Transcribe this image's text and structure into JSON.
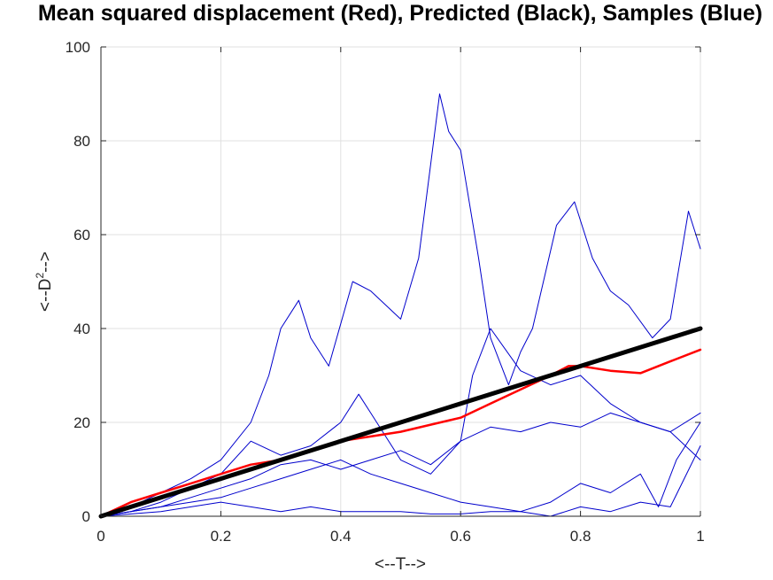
{
  "chart_data": {
    "type": "line",
    "title": "Mean squared displacement (Red), Predicted (Black), Samples (Blue)",
    "xlabel": "<--T-->",
    "ylabel_base": "<--D",
    "ylabel_sup": "2",
    "ylabel_tail": "-->",
    "xlim": [
      0,
      1
    ],
    "ylim": [
      0,
      100
    ],
    "xticks": [
      "0",
      "0.2",
      "0.4",
      "0.6",
      "0.8",
      "1"
    ],
    "yticks": [
      "0",
      "20",
      "40",
      "60",
      "80",
      "100"
    ],
    "grid": true,
    "colors": {
      "samples": "#0000cc",
      "mean": "#ff0000",
      "predicted": "#000000",
      "grid": "#e0e0e0",
      "axis": "#262626"
    },
    "series": [
      {
        "name": "Samples",
        "role": "samples",
        "width": 1,
        "x": [
          0,
          0.05,
          0.1,
          0.15,
          0.2,
          0.25,
          0.28,
          0.3,
          0.33,
          0.35,
          0.38,
          0.42,
          0.45,
          0.5,
          0.53,
          0.55,
          0.565,
          0.58,
          0.6,
          0.63,
          0.65,
          0.68,
          0.7,
          0.72,
          0.76,
          0.79,
          0.82,
          0.85,
          0.88,
          0.92,
          0.95,
          0.98,
          1.0
        ],
        "y": [
          0,
          2,
          5,
          8,
          12,
          20,
          30,
          40,
          46,
          38,
          32,
          50,
          48,
          42,
          55,
          75,
          90,
          82,
          78,
          55,
          38,
          28,
          35,
          40,
          62,
          67,
          55,
          48,
          45,
          38,
          42,
          65,
          57
        ]
      },
      {
        "name": "Samples",
        "role": "samples",
        "width": 1,
        "x": [
          0,
          0.05,
          0.1,
          0.15,
          0.2,
          0.25,
          0.3,
          0.35,
          0.4,
          0.43,
          0.45,
          0.5,
          0.55,
          0.6,
          0.62,
          0.65,
          0.7,
          0.75,
          0.8,
          0.85,
          0.9,
          0.95,
          1.0
        ],
        "y": [
          0,
          1,
          3,
          6,
          9,
          16,
          13,
          15,
          20,
          26,
          22,
          12,
          9,
          16,
          30,
          40,
          31,
          28,
          30,
          24,
          20,
          18,
          12
        ]
      },
      {
        "name": "Samples",
        "role": "samples",
        "width": 1,
        "x": [
          0,
          0.05,
          0.1,
          0.15,
          0.2,
          0.25,
          0.3,
          0.35,
          0.4,
          0.45,
          0.5,
          0.55,
          0.6,
          0.65,
          0.7,
          0.75,
          0.8,
          0.85,
          0.9,
          0.95,
          1.0
        ],
        "y": [
          0,
          1,
          2,
          4,
          6,
          8,
          11,
          12,
          10,
          12,
          14,
          11,
          16,
          19,
          18,
          20,
          19,
          22,
          20,
          18,
          22
        ]
      },
      {
        "name": "Samples",
        "role": "samples",
        "width": 1,
        "x": [
          0,
          0.05,
          0.1,
          0.15,
          0.2,
          0.25,
          0.3,
          0.35,
          0.4,
          0.45,
          0.5,
          0.55,
          0.6,
          0.65,
          0.7,
          0.75,
          0.8,
          0.85,
          0.9,
          0.95,
          1.0
        ],
        "y": [
          0,
          1,
          2,
          3,
          4,
          6,
          8,
          10,
          12,
          9,
          7,
          5,
          3,
          2,
          1,
          0,
          2,
          1,
          3,
          2,
          15
        ]
      },
      {
        "name": "Samples",
        "role": "samples",
        "width": 1,
        "x": [
          0,
          0.05,
          0.1,
          0.15,
          0.2,
          0.25,
          0.3,
          0.35,
          0.4,
          0.45,
          0.5,
          0.55,
          0.6,
          0.65,
          0.7,
          0.75,
          0.8,
          0.85,
          0.9,
          0.93,
          0.96,
          1.0
        ],
        "y": [
          0,
          0.5,
          1,
          2,
          3,
          2,
          1,
          2,
          1,
          1,
          1,
          0.5,
          0.5,
          1,
          1,
          3,
          7,
          5,
          9,
          2,
          12,
          20
        ]
      },
      {
        "name": "Mean",
        "role": "mean",
        "width": 2.5,
        "x": [
          0,
          0.05,
          0.1,
          0.15,
          0.2,
          0.25,
          0.3,
          0.35,
          0.4,
          0.45,
          0.5,
          0.55,
          0.6,
          0.65,
          0.7,
          0.75,
          0.78,
          0.8,
          0.85,
          0.9,
          0.95,
          1.0
        ],
        "y": [
          0,
          3,
          5,
          7,
          9,
          11,
          12,
          14,
          16,
          17,
          18,
          19.5,
          21,
          24,
          27,
          30,
          32,
          32,
          31,
          30.5,
          33,
          35.5
        ]
      },
      {
        "name": "Predicted",
        "role": "predicted",
        "width": 5,
        "x": [
          0,
          1
        ],
        "y": [
          0,
          40
        ]
      }
    ]
  }
}
